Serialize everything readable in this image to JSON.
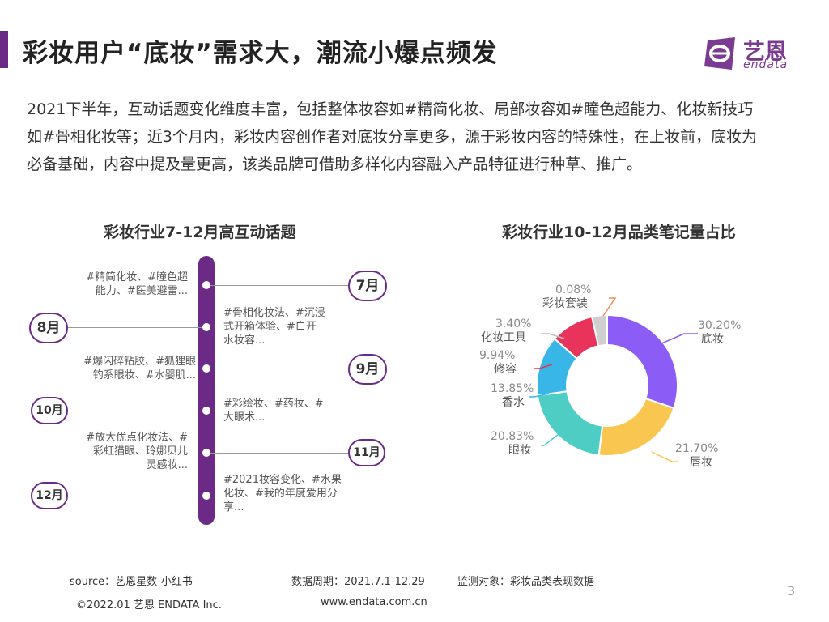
{
  "header": {
    "title": "彩妆用户“底妆”需求大，潮流小爆点频发",
    "logo_cn": "艺恩",
    "logo_en": "endata"
  },
  "intro": {
    "line1": "2021下半年，互动话题变化维度丰富，包括整体妆容如#精简化妆、局部妆容如#瞳色超能力、化妆新技巧",
    "line2": "如#骨相化妆等；近3个月内，彩妆内容创作者对底妆分享更多，源于彩妆内容的特殊性，在上妆前，底妆为",
    "line3": "必备基础，内容中提及量更高，该类品牌可借助多样化内容融入产品特征进行种草、推广。"
  },
  "timeline": {
    "title": "彩妆行业7-12月高互动话题",
    "months": [
      "7月",
      "8月",
      "9月",
      "10月",
      "11月",
      "12月"
    ],
    "topics": [
      [
        "#精简化妆、#瞳色超",
        "能力、#医美避雷..."
      ],
      [
        "#骨相化妆法、#沉浸",
        "式开箱体验、#白开",
        "水妆容..."
      ],
      [
        "#爆闪碎钻胶、#狐狸眼",
        "钓系眼妆、#水婴肌..."
      ],
      [
        "#彩绘妆、#药妆、#",
        "大眼术..."
      ],
      [
        "#放大优点化妆法、#",
        "彩虹猫眼、玲娜贝儿",
        "灵感妆..."
      ],
      [
        "#2021妆容变化、#水果",
        "化妆、#我的年度爱用分",
        "享..."
      ]
    ]
  },
  "chart_data": {
    "type": "pie",
    "title": "彩妆行业10-12月品类笔记量占比",
    "categories": [
      "底妆",
      "唇妆",
      "眼妆",
      "香水",
      "修容",
      "化妆工具",
      "彩妆套装"
    ],
    "values": [
      30.2,
      21.7,
      20.83,
      13.85,
      9.94,
      3.4,
      0.08
    ],
    "labels": [
      "30.20%",
      "21.70%",
      "20.83%",
      "13.85%",
      "9.94%",
      "3.40%",
      "0.08%"
    ],
    "colors": [
      "#8b5cf6",
      "#f9c74f",
      "#4ecdc4",
      "#38b6e8",
      "#e8345a",
      "#cfcfcf",
      "#f08a5d"
    ]
  },
  "footer": {
    "source": "source：艺恩星数-小红书",
    "period": "数据周期：2021.7.1-12.29",
    "target": "监测对象：彩妆品类表现数据",
    "copyright": "©2022.01 艺恩 ENDATA Inc.",
    "website": "www.endata.com.cn",
    "page": "3"
  }
}
